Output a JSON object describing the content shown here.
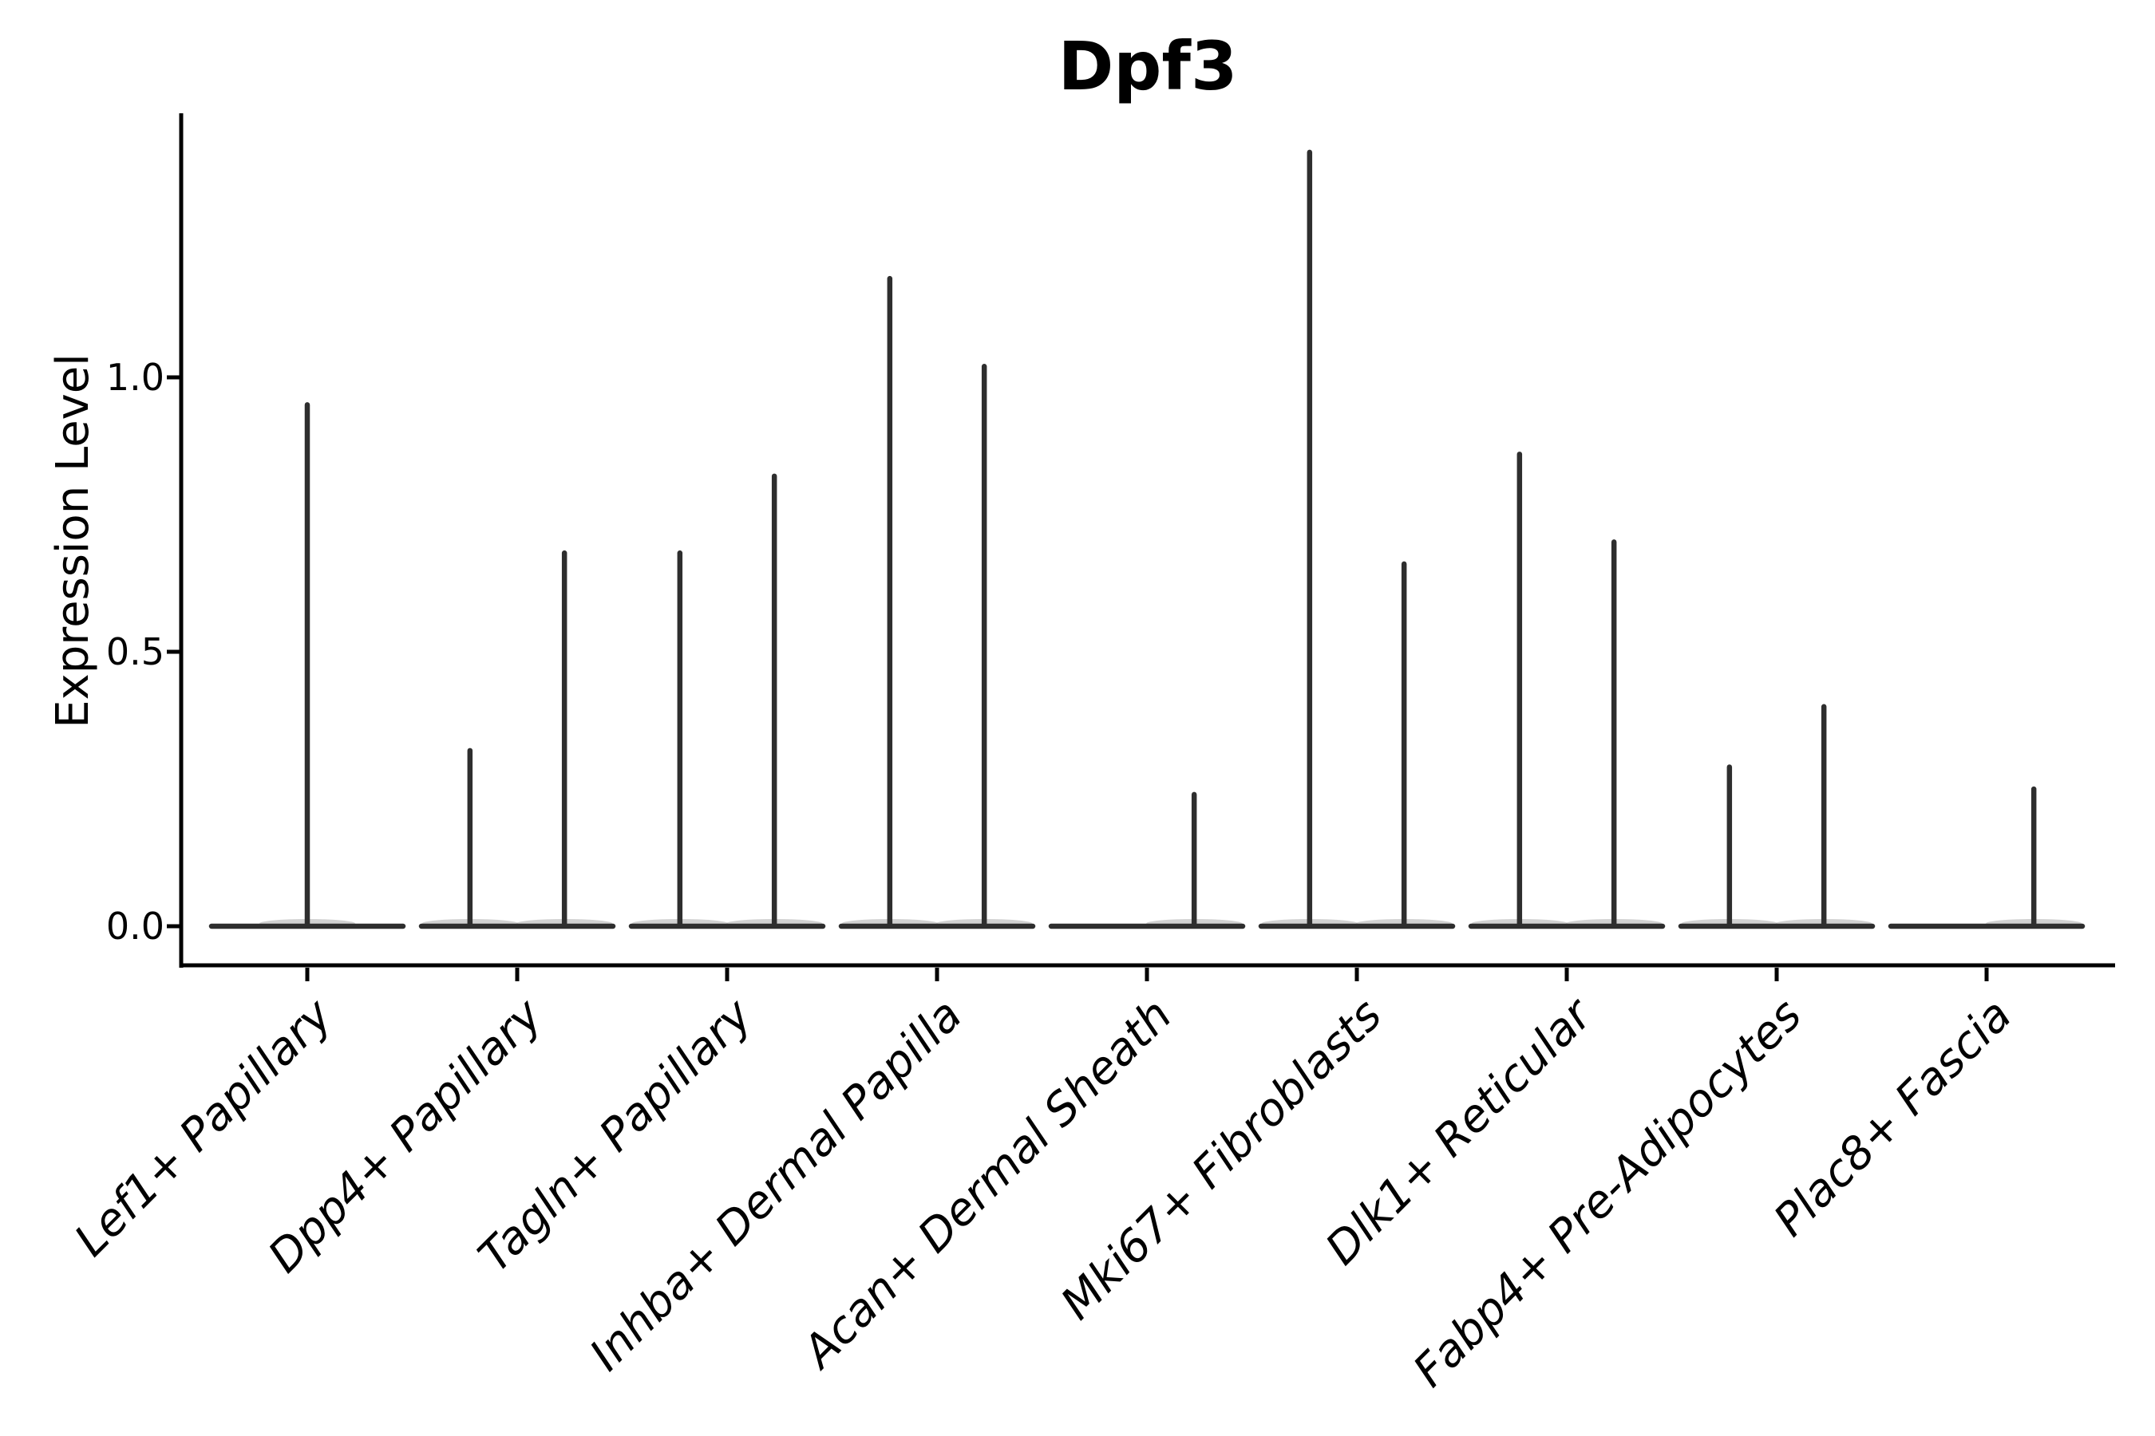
{
  "title": "Dpf3",
  "axis": {
    "ylabel": "Expression Level",
    "ytick_labels": [
      "0.0",
      "0.5",
      "1.0"
    ]
  },
  "chart_data": {
    "type": "violin",
    "title": "Dpf3",
    "xlabel": "",
    "ylabel": "Expression Level",
    "yticks": [
      0.0,
      0.5,
      1.0
    ],
    "ylim": [
      -0.07,
      1.48
    ],
    "grid": false,
    "legend": "none",
    "background": "#ffffff",
    "violin_color": "#2e2e2e",
    "axis_color": "#000000",
    "categories": [
      "Lef1+ Papillary",
      "Dpp4+ Papillary",
      "Tagln+ Papillary",
      "Inhba+ Dermal Papilla",
      "Acan+ Dermal Sheath",
      "Mki67+ Fibroblasts",
      "Dlk1+ Reticular",
      "Fabp4+ Pre-Adipocytes",
      "Plac8+ Fascia"
    ],
    "description": "Violin plot of Dpf3 expression; each cluster shows a wide flat violin at 0 expression with narrow spikes reaching the maximum expression values.",
    "baseline_value": 0.0,
    "series": [
      {
        "name": "Lef1+ Papillary",
        "spikes": [
          {
            "x_offset": 0.0,
            "value": 0.95
          }
        ]
      },
      {
        "name": "Dpp4+ Papillary",
        "spikes": [
          {
            "x_offset": -0.225,
            "value": 0.32
          },
          {
            "x_offset": 0.225,
            "value": 0.68
          }
        ]
      },
      {
        "name": "Tagln+ Papillary",
        "spikes": [
          {
            "x_offset": -0.225,
            "value": 0.68
          },
          {
            "x_offset": 0.225,
            "value": 0.82
          }
        ]
      },
      {
        "name": "Inhba+ Dermal Papilla",
        "spikes": [
          {
            "x_offset": -0.225,
            "value": 1.18
          },
          {
            "x_offset": 0.225,
            "value": 1.02
          }
        ]
      },
      {
        "name": "Acan+ Dermal Sheath",
        "spikes": [
          {
            "x_offset": 0.225,
            "value": 0.24
          }
        ]
      },
      {
        "name": "Mki67+ Fibroblasts",
        "spikes": [
          {
            "x_offset": -0.225,
            "value": 1.41
          },
          {
            "x_offset": 0.225,
            "value": 0.66
          }
        ]
      },
      {
        "name": "Dlk1+ Reticular",
        "spikes": [
          {
            "x_offset": -0.225,
            "value": 0.86
          },
          {
            "x_offset": 0.225,
            "value": 0.7
          }
        ]
      },
      {
        "name": "Fabp4+ Pre-Adipocytes",
        "spikes": [
          {
            "x_offset": -0.225,
            "value": 0.29
          },
          {
            "x_offset": 0.225,
            "value": 0.4
          }
        ]
      },
      {
        "name": "Plac8+ Fascia",
        "spikes": [
          {
            "x_offset": 0.225,
            "value": 0.25
          }
        ]
      }
    ]
  }
}
